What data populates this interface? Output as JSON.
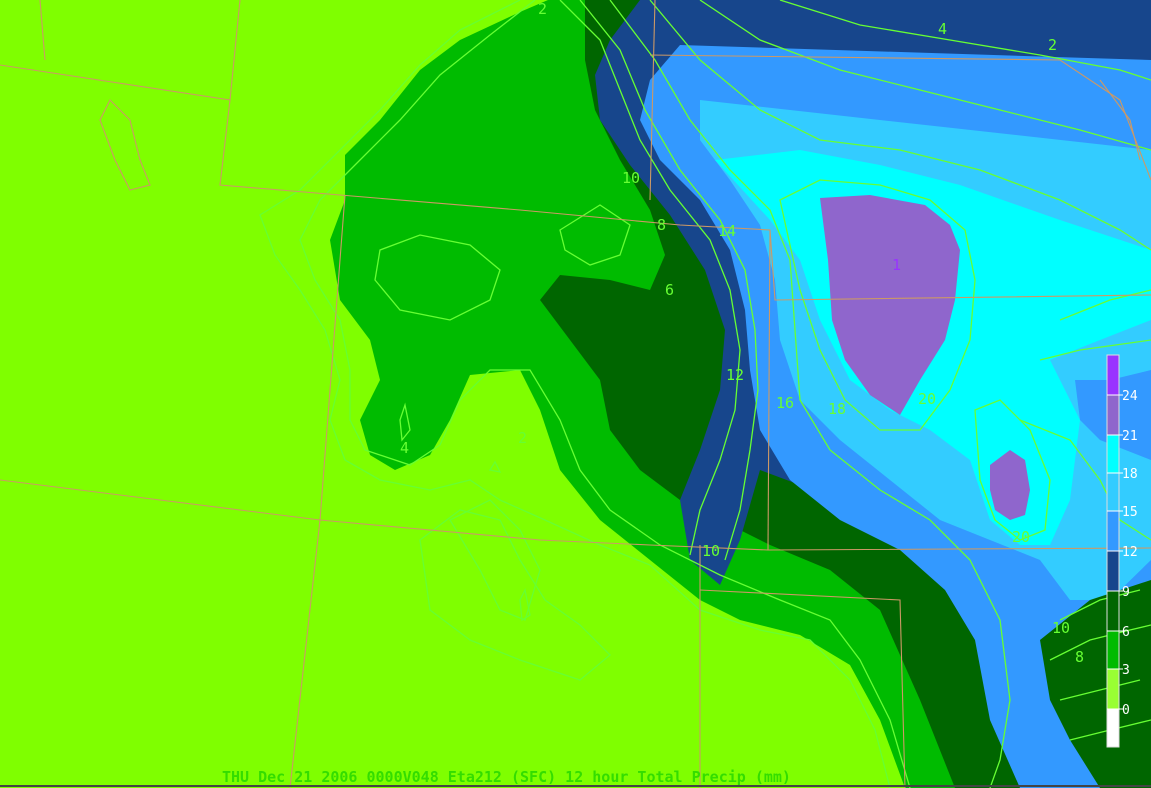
{
  "caption": "THU Dec 21 2006 0000V048 Eta212 (SFC) 12 hour Total Precip (mm)",
  "colorbar": {
    "ticks": [
      "24",
      "21",
      "18",
      "15",
      "12",
      "9",
      "6",
      "3",
      "0"
    ],
    "bands": [
      {
        "range": "24+",
        "color": "#9933ff"
      },
      {
        "range": "21-24",
        "color": "#8f66cc"
      },
      {
        "range": "18-21",
        "color": "#00ffff"
      },
      {
        "range": "15-18",
        "color": "#33ccff"
      },
      {
        "range": "12-15",
        "color": "#3399ff"
      },
      {
        "range": "9-12",
        "color": "#17468c"
      },
      {
        "range": "6-9",
        "color": "#006600"
      },
      {
        "range": "3-6",
        "color": "#00bb00"
      },
      {
        "range": "0-3",
        "color": "#99ff33"
      },
      {
        "range": "<0",
        "color": "#ffffff"
      }
    ]
  },
  "contour_labels": [
    {
      "id": "c-2-top",
      "text": "2"
    },
    {
      "id": "c-4-top",
      "text": "4"
    },
    {
      "id": "c-2-topright",
      "text": "2"
    },
    {
      "id": "c-10-a",
      "text": "10"
    },
    {
      "id": "c-8-a",
      "text": "8"
    },
    {
      "id": "c-14-a",
      "text": "14"
    },
    {
      "id": "c-6-a",
      "text": "6"
    },
    {
      "id": "c-1-max",
      "text": "1"
    },
    {
      "id": "c-12-a",
      "text": "12"
    },
    {
      "id": "c-16-a",
      "text": "16"
    },
    {
      "id": "c-18-a",
      "text": "18"
    },
    {
      "id": "c-20-a",
      "text": "20"
    },
    {
      "id": "c-4-left",
      "text": "4"
    },
    {
      "id": "c-2-mid",
      "text": "2"
    },
    {
      "id": "c-10-b",
      "text": "10"
    },
    {
      "id": "c-20-b",
      "text": "20"
    },
    {
      "id": "c-10-c",
      "text": "10"
    },
    {
      "id": "c-8-b",
      "text": "8"
    }
  ],
  "palette": {
    "background": "#7fff00",
    "light_green": "#00bb00",
    "dark_green": "#006600",
    "navy": "#17468c",
    "blue": "#3399ff",
    "cyan": "#00ffff",
    "purple": "#8f66cc",
    "contour_line": "#66ff33",
    "border_line": "#cc9966"
  }
}
